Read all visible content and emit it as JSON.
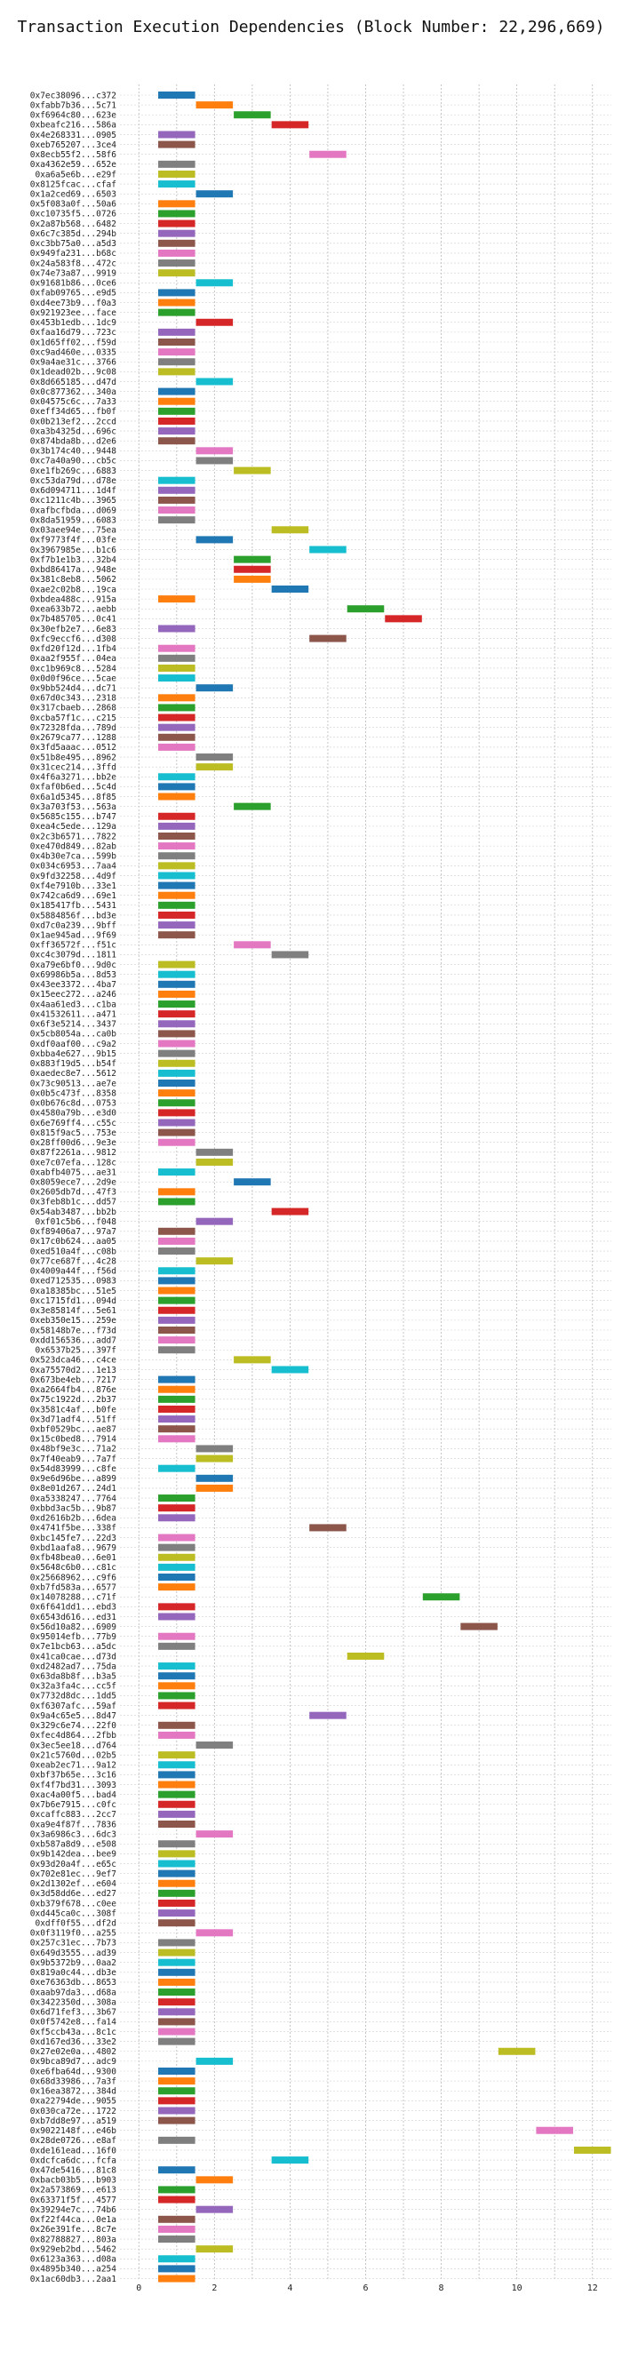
{
  "chart_data": {
    "type": "bar",
    "title": "Transaction Execution Dependencies (Block Number: 22,296,669)",
    "xlabel": "",
    "ylabel": "",
    "xlim": [
      -0.5,
      12.5
    ],
    "xticks": [
      0,
      2,
      4,
      6,
      8,
      10,
      12
    ],
    "grid": true,
    "legend": "none",
    "palette": [
      "#1f77b4",
      "#ff7f0e",
      "#2ca02c",
      "#d62728",
      "#9467bd",
      "#8c564b",
      "#e377c2",
      "#7f7f7f",
      "#bcbd22",
      "#17becf"
    ],
    "bar_width": 1,
    "categories": [
      "0x7ec38096...c372",
      "0xfabb7b36...5c71",
      "0xf6964c80...623e",
      "0xbeafc216...586a",
      "0x4e268331...0905",
      "0xeb765207...3ce4",
      "0x8ecb55f2...58f6",
      "0xa4362e59...652e",
      "0xa6a5e6b...e29f",
      "0x8125fcac...cfaf",
      "0x1a2ced69...6503",
      "0x5f083a0f...50a6",
      "0xc10735f5...0726",
      "0x2a87b568...6482",
      "0x6c7c385d...294b",
      "0xc3bb75a0...a5d3",
      "0x949fa231...b68c",
      "0x24a583f8...472c",
      "0x74e73a87...9919",
      "0x91681b86...0ce6",
      "0xfab09765...e9d5",
      "0xd4ee73b9...f0a3",
      "0x921923ee...face",
      "0x453b1edb...1dc9",
      "0xfaa16d79...723c",
      "0x1d65ff02...f59d",
      "0xc9ad460e...0335",
      "0x9a4ae31c...3766",
      "0x1dead02b...9c08",
      "0x8d665185...d47d",
      "0x0c877362...340a",
      "0x04575c6c...7a33",
      "0xeff34d65...fb0f",
      "0x0b213ef2...2ccd",
      "0xa3b4325d...696c",
      "0x874bda8b...d2e6",
      "0x3b174c40...9448",
      "0xc7a40a90...cb5c",
      "0xe1fb269c...6883",
      "0xc53da79d...d78e",
      "0x6d094711...1d4f",
      "0xc1211c4b...3965",
      "0xafbcfbda...d069",
      "0x8da51959...6083",
      "0x03aee94e...75ea",
      "0xf9773f4f...03fe",
      "0x3967985e...b1c6",
      "0xf7b1e1b3...32b4",
      "0xbd86417a...948e",
      "0x381c8eb8...5062",
      "0xae2c02b8...19ca",
      "0xbdea488c...915a",
      "0xea633b72...aebb",
      "0x7b485705...0c41",
      "0x30efb2e7...6e83",
      "0xfc9eccf6...d308",
      "0xfd20f12d...1fb4",
      "0xaa2f955f...04ea",
      "0xc1b969c8...5284",
      "0x0d0f96ce...5cae",
      "0x9bb524d4...dc71",
      "0x67d0c343...2318",
      "0x317cbaeb...2868",
      "0xcba57f1c...c215",
      "0x72328fda...789d",
      "0x2679ca77...1288",
      "0x3fd5aaac...0512",
      "0x51b8e495...8962",
      "0x31cec214...3ffd",
      "0x4f6a3271...bb2e",
      "0xfaf0b6ed...5c4d",
      "0x6a1d5345...8f85",
      "0x3a703f53...563a",
      "0x5685c155...b747",
      "0xea4c5ede...129a",
      "0x2c3b6571...7822",
      "0xe470d849...82ab",
      "0x4b30e7ca...599b",
      "0x034c6953...7aa4",
      "0x9fd32258...4d9f",
      "0xf4e7910b...33e1",
      "0x742ca6d9...69e1",
      "0x185417fb...5431",
      "0x5884856f...bd3e",
      "0xd7c0a239...9bff",
      "0x1ae945ad...9f69",
      "0xff36572f...f51c",
      "0xc4c3079d...1811",
      "0xa79e6bf0...9d0c",
      "0x69986b5a...8d53",
      "0x43ee3372...4ba7",
      "0x15eec272...a246",
      "0x4aa61ed3...c1ba",
      "0x41532611...a471",
      "0x6f3e5214...3437",
      "0x5cb8054a...ca0b",
      "0xdf0aaf00...c9a2",
      "0xbba4e627...9b15",
      "0x883f19d5...b54f",
      "0xaedec8e7...5612",
      "0x73c90513...ae7e",
      "0x0b5c473f...8358",
      "0x0b676c8d...0753",
      "0x4580a79b...e3d0",
      "0x6e769ff4...c55c",
      "0x815f9ac5...753e",
      "0x28ff00d6...9e3e",
      "0x87f2261a...9812",
      "0xe7c07efa...128c",
      "0xabfb4075...ae31",
      "0x8059ece7...2d9e",
      "0x2605db7d...47f3",
      "0x3feb8b1c...dd57",
      "0x54ab3487...bb2b",
      "0xf01c5b6...f048",
      "0xf89406a7...97a7",
      "0x17c0b624...aa05",
      "0xed510a4f...c08b",
      "0x77ce687f...4c28",
      "0x4009a44f...f56d",
      "0xed712535...0983",
      "0xa18385bc...51e5",
      "0xc1715fd1...094d",
      "0x3e85814f...5e61",
      "0xeb350e15...259e",
      "0x58148b7e...f73d",
      "0xdd156536...add7",
      "0x6537b25...397f",
      "0x523dca46...c4ce",
      "0xa75570d2...1e13",
      "0x673be4eb...7217",
      "0xa2664fb4...876e",
      "0x75c1922d...2b37",
      "0x3581c4af...b0fe",
      "0x3d71adf4...51ff",
      "0xbf0529bc...ae87",
      "0x15c0bed8...7914",
      "0x48bf9e3c...71a2",
      "0x7f40eab9...7a7f",
      "0x54d83999...c8fe",
      "0x9e6d96be...a899",
      "0x8e01d267...24d1",
      "0xa5338247...7764",
      "0xbbd3ac5b...9b87",
      "0xd2616b2b...6dea",
      "0x4741f5be...338f",
      "0xbc145fe7...22d3",
      "0xbd1aafa8...9679",
      "0xfb48bea0...6e01",
      "0x5648c6b0...c81c",
      "0x25668962...c9f6",
      "0xb7fd583a...6577",
      "0x14078288...c71f",
      "0x6f641dd1...ebd3",
      "0x6543d616...ed31",
      "0x56d10a82...6909",
      "0x95014efb...77b9",
      "0x7e1bcb63...a5dc",
      "0x41ca0cae...d73d",
      "0xd2482ad7...75da",
      "0x63da8b8f...b3a5",
      "0x32a3fa4c...cc5f",
      "0x7732d8dc...1dd5",
      "0xf6307afc...59af",
      "0x9a4c65e5...8d47",
      "0x329c6e74...22f0",
      "0xfec4d864...2fbb",
      "0x3ec5ee18...d764",
      "0x21c5760d...02b5",
      "0xeab2ec71...9a12",
      "0xbf37b65e...3c16",
      "0xf4f7bd31...3093",
      "0xac4a00f5...bad4",
      "0x7b6e7915...c0fc",
      "0xcaffc883...2cc7",
      "0xa9e4f87f...7836",
      "0x3a6986c3...6dc3",
      "0xb587a8d9...e508",
      "0x9b142dea...bee9",
      "0x93d20a4f...e65c",
      "0x702e81ec...9ef7",
      "0x2d1302ef...e604",
      "0x3d58dd6e...ed27",
      "0xb379f678...c0ee",
      "0xd445ca0c...308f",
      "0xdff0f55...df2d",
      "0x0f3119f0...a255",
      "0x257c31ec...7b73",
      "0x649d3555...ad39",
      "0x9b5372b9...0aa2",
      "0x819a0c44...db3e",
      "0xe76363db...8653",
      "0xaab97da3...d68a",
      "0x3422350d...308a",
      "0x6d71fef3...3b67",
      "0x0f5742e8...fa14",
      "0xf5ccb43a...8c1c",
      "0xd167ed36...33e2",
      "0x27e02e0a...4802",
      "0x9bca89d7...adc9",
      "0xe6fba64d...9300",
      "0x68d33986...7a3f",
      "0x16ea3872...384d",
      "0xa22794de...9055",
      "0x030ca72e...1722",
      "0xb7dd8e97...a519",
      "0x9022148f...e46b",
      "0x28de0726...e8af",
      "0xde161ead...16f0",
      "0xdcfca6dc...fcfa",
      "0x47de5416...81c8",
      "0xbacb03b5...b903",
      "0x2a573869...e613",
      "0x63371f5f...4577",
      "0x39294e7c...74b6",
      "0xf22f44ca...0e1a",
      "0x26e391fe...8c7e",
      "0x82788827...803a",
      "0x929eb2bd...5462",
      "0x6123a363...d08a",
      "0x4895b340...a254",
      "0x1ac60db3...2aa1"
    ],
    "values": [
      1,
      2,
      3,
      4,
      1,
      1,
      5,
      1,
      1,
      1,
      2,
      1,
      1,
      1,
      1,
      1,
      1,
      1,
      1,
      2,
      1,
      1,
      1,
      2,
      1,
      1,
      1,
      1,
      1,
      2,
      1,
      1,
      1,
      1,
      1,
      1,
      2,
      2,
      3,
      1,
      1,
      1,
      1,
      1,
      4,
      2,
      5,
      3,
      3,
      3,
      4,
      1,
      6,
      7,
      1,
      5,
      1,
      1,
      1,
      1,
      2,
      1,
      1,
      1,
      1,
      1,
      1,
      2,
      2,
      1,
      1,
      1,
      3,
      1,
      1,
      1,
      1,
      1,
      1,
      1,
      1,
      1,
      1,
      1,
      1,
      1,
      3,
      4,
      1,
      1,
      1,
      1,
      1,
      1,
      1,
      1,
      1,
      1,
      1,
      1,
      1,
      1,
      1,
      1,
      1,
      1,
      1,
      2,
      2,
      1,
      3,
      1,
      1,
      4,
      2,
      1,
      1,
      1,
      2,
      1,
      1,
      1,
      1,
      1,
      1,
      1,
      1,
      1,
      3,
      4,
      1,
      1,
      1,
      1,
      1,
      1,
      1,
      2,
      2,
      1,
      2,
      2,
      1,
      1,
      1,
      5,
      1,
      1,
      1,
      1,
      1,
      1,
      8,
      1,
      1,
      9,
      1,
      1,
      6,
      1,
      1,
      1,
      1,
      1,
      5,
      1,
      1,
      2,
      1,
      1,
      1,
      1,
      1,
      1,
      1,
      1,
      2,
      1,
      1,
      1,
      1,
      1,
      1,
      1,
      1,
      1,
      2,
      1,
      1,
      1,
      1,
      1,
      1,
      1,
      1,
      1,
      1,
      1,
      10,
      2,
      1,
      1,
      1,
      1,
      1,
      1,
      11,
      1,
      12,
      4,
      1,
      2,
      1,
      1,
      2,
      1,
      1,
      1,
      2,
      1,
      1,
      1
    ],
    "colors": [
      0,
      1,
      2,
      3,
      4,
      5,
      6,
      7,
      8,
      9,
      0,
      1,
      2,
      3,
      4,
      5,
      6,
      7,
      8,
      9,
      0,
      1,
      2,
      3,
      4,
      5,
      6,
      7,
      8,
      9,
      0,
      1,
      2,
      3,
      4,
      5,
      6,
      7,
      8,
      9,
      4,
      5,
      6,
      7,
      8,
      0,
      9,
      2,
      3,
      1,
      0,
      1,
      2,
      3,
      4,
      5,
      6,
      7,
      8,
      9,
      0,
      1,
      2,
      3,
      4,
      5,
      6,
      7,
      8,
      9,
      0,
      1,
      2,
      3,
      4,
      5,
      6,
      7,
      8,
      9,
      0,
      1,
      2,
      3,
      4,
      5,
      6,
      7,
      8,
      9,
      0,
      1,
      2,
      3,
      4,
      5,
      6,
      7,
      8,
      9,
      0,
      1,
      2,
      3,
      4,
      5,
      6,
      7,
      8,
      9,
      0,
      1,
      2,
      3,
      4,
      5,
      6,
      7,
      8,
      9,
      0,
      1,
      2,
      3,
      4,
      5,
      6,
      7,
      8,
      9,
      0,
      1,
      2,
      3,
      4,
      5,
      6,
      7,
      8,
      9,
      0,
      1,
      2,
      3,
      4,
      5,
      6,
      7,
      8,
      9,
      0,
      1,
      2,
      3,
      4,
      5,
      6,
      7,
      8,
      9,
      0,
      1,
      2,
      3,
      4,
      5,
      6,
      7,
      8,
      9,
      0,
      1,
      2,
      3,
      4,
      5,
      6,
      7,
      8,
      9,
      0,
      1,
      2,
      3,
      4,
      5,
      6,
      7,
      8,
      9,
      0,
      1,
      2,
      3,
      4,
      5,
      6,
      7,
      8,
      9,
      0,
      1,
      2,
      3,
      4,
      5,
      6,
      7,
      8,
      9,
      0,
      1,
      2,
      3,
      4,
      5,
      6,
      7,
      8,
      9,
      0,
      1
    ]
  }
}
